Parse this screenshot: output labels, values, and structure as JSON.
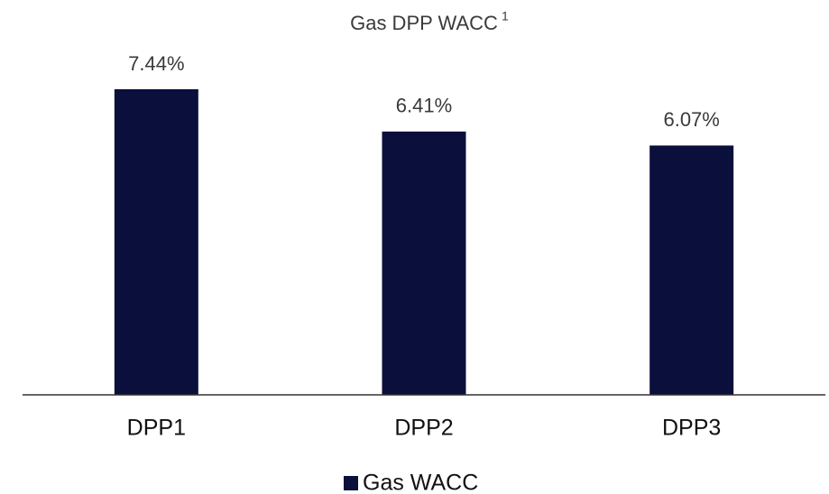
{
  "chart_data": {
    "type": "bar",
    "title": "Gas DPP WACC",
    "title_note": "1",
    "categories": [
      "DPP1",
      "DPP2",
      "DPP3"
    ],
    "series": [
      {
        "name": "Gas WACC",
        "color": "#0b0f3b",
        "values": [
          7.44,
          6.41,
          6.07
        ],
        "value_labels": [
          "7.44%",
          "6.41%",
          "6.07%"
        ]
      }
    ]
  }
}
